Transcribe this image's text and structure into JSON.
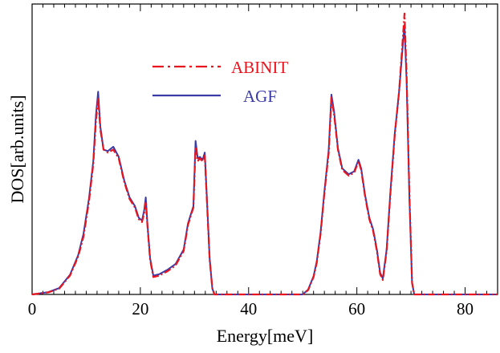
{
  "chart_data": {
    "type": "line",
    "xlabel": "Energy[meV]",
    "ylabel": "DOS[arb.units]",
    "xlim": [
      0,
      86
    ],
    "ylim": [
      0,
      1
    ],
    "x_ticks": [
      "0",
      "20",
      "40",
      "60",
      "80"
    ],
    "x_tick_values": [
      0,
      20,
      40,
      60,
      80
    ],
    "y_ticks_labeled": false,
    "grid": false,
    "legend_position": "upper-left",
    "series": [
      {
        "name": "ABINIT",
        "color": "#e8141e",
        "style": "dashed",
        "points": [
          [
            0,
            0
          ],
          [
            3,
            0.007
          ],
          [
            5,
            0.02
          ],
          [
            7,
            0.065
          ],
          [
            8.5,
            0.13
          ],
          [
            9.5,
            0.2
          ],
          [
            10.5,
            0.32
          ],
          [
            11.3,
            0.45
          ],
          [
            11.8,
            0.6
          ],
          [
            12.2,
            0.68
          ],
          [
            12.6,
            0.57
          ],
          [
            13.2,
            0.5
          ],
          [
            14,
            0.49
          ],
          [
            15,
            0.5
          ],
          [
            16,
            0.47
          ],
          [
            17,
            0.39
          ],
          [
            18,
            0.33
          ],
          [
            19,
            0.3
          ],
          [
            19.7,
            0.26
          ],
          [
            20.3,
            0.25
          ],
          [
            20.7,
            0.28
          ],
          [
            21,
            0.32
          ],
          [
            21.3,
            0.24
          ],
          [
            21.8,
            0.12
          ],
          [
            22.4,
            0.06
          ],
          [
            23.5,
            0.065
          ],
          [
            25,
            0.08
          ],
          [
            26.5,
            0.1
          ],
          [
            28,
            0.15
          ],
          [
            28.8,
            0.24
          ],
          [
            29.3,
            0.27
          ],
          [
            29.8,
            0.3
          ],
          [
            30.2,
            0.51
          ],
          [
            30.6,
            0.46
          ],
          [
            31,
            0.47
          ],
          [
            31.5,
            0.46
          ],
          [
            31.9,
            0.48
          ],
          [
            32.3,
            0.32
          ],
          [
            32.8,
            0.12
          ],
          [
            33.3,
            0.02
          ],
          [
            33.7,
            0
          ],
          [
            50,
            0
          ],
          [
            51,
            0.015
          ],
          [
            52,
            0.06
          ],
          [
            52.6,
            0.11
          ],
          [
            53.3,
            0.21
          ],
          [
            54,
            0.35
          ],
          [
            54.8,
            0.49
          ],
          [
            55.3,
            0.68
          ],
          [
            55.8,
            0.62
          ],
          [
            56.5,
            0.5
          ],
          [
            57.3,
            0.43
          ],
          [
            58.5,
            0.41
          ],
          [
            59.5,
            0.42
          ],
          [
            60.3,
            0.46
          ],
          [
            60.8,
            0.43
          ],
          [
            61.5,
            0.34
          ],
          [
            62.3,
            0.26
          ],
          [
            63,
            0.22
          ],
          [
            63.7,
            0.15
          ],
          [
            64.3,
            0.07
          ],
          [
            64.8,
            0.05
          ],
          [
            65.5,
            0.15
          ],
          [
            66.2,
            0.35
          ],
          [
            67,
            0.55
          ],
          [
            67.8,
            0.7
          ],
          [
            68.4,
            0.86
          ],
          [
            68.8,
            0.97
          ],
          [
            69.2,
            0.75
          ],
          [
            69.7,
            0.35
          ],
          [
            70.2,
            0.04
          ],
          [
            70.6,
            0
          ],
          [
            86,
            0
          ]
        ]
      },
      {
        "name": "AGF",
        "color": "#3a3aa8",
        "style": "solid",
        "points": [
          [
            0,
            0
          ],
          [
            3,
            0.008
          ],
          [
            5,
            0.022
          ],
          [
            7,
            0.068
          ],
          [
            8.5,
            0.135
          ],
          [
            9.5,
            0.21
          ],
          [
            10.5,
            0.33
          ],
          [
            11.3,
            0.46
          ],
          [
            11.8,
            0.62
          ],
          [
            12.2,
            0.7
          ],
          [
            12.6,
            0.58
          ],
          [
            13.2,
            0.5
          ],
          [
            14,
            0.495
          ],
          [
            15,
            0.51
          ],
          [
            16,
            0.475
          ],
          [
            17,
            0.395
          ],
          [
            18,
            0.335
          ],
          [
            19,
            0.305
          ],
          [
            19.7,
            0.265
          ],
          [
            20.3,
            0.255
          ],
          [
            20.7,
            0.29
          ],
          [
            21,
            0.335
          ],
          [
            21.3,
            0.245
          ],
          [
            21.8,
            0.125
          ],
          [
            22.4,
            0.065
          ],
          [
            23.5,
            0.07
          ],
          [
            25,
            0.085
          ],
          [
            26.5,
            0.105
          ],
          [
            28,
            0.155
          ],
          [
            28.8,
            0.245
          ],
          [
            29.3,
            0.275
          ],
          [
            29.8,
            0.305
          ],
          [
            30.2,
            0.53
          ],
          [
            30.6,
            0.47
          ],
          [
            31,
            0.475
          ],
          [
            31.5,
            0.465
          ],
          [
            31.9,
            0.49
          ],
          [
            32.3,
            0.33
          ],
          [
            32.8,
            0.125
          ],
          [
            33.3,
            0.02
          ],
          [
            33.7,
            0
          ],
          [
            50,
            0
          ],
          [
            51,
            0.017
          ],
          [
            52,
            0.063
          ],
          [
            52.6,
            0.115
          ],
          [
            53.3,
            0.215
          ],
          [
            54,
            0.355
          ],
          [
            54.8,
            0.5
          ],
          [
            55.3,
            0.69
          ],
          [
            55.8,
            0.63
          ],
          [
            56.5,
            0.505
          ],
          [
            57.3,
            0.435
          ],
          [
            58.5,
            0.415
          ],
          [
            59.5,
            0.425
          ],
          [
            60.3,
            0.465
          ],
          [
            60.8,
            0.435
          ],
          [
            61.5,
            0.345
          ],
          [
            62.3,
            0.265
          ],
          [
            63,
            0.225
          ],
          [
            63.7,
            0.155
          ],
          [
            64.3,
            0.075
          ],
          [
            64.8,
            0.055
          ],
          [
            65.5,
            0.155
          ],
          [
            66.2,
            0.355
          ],
          [
            67,
            0.555
          ],
          [
            67.8,
            0.7
          ],
          [
            68.4,
            0.84
          ],
          [
            68.8,
            0.93
          ],
          [
            69.2,
            0.73
          ],
          [
            69.7,
            0.34
          ],
          [
            70.2,
            0.04
          ],
          [
            70.6,
            0
          ],
          [
            86,
            0
          ]
        ]
      }
    ]
  }
}
